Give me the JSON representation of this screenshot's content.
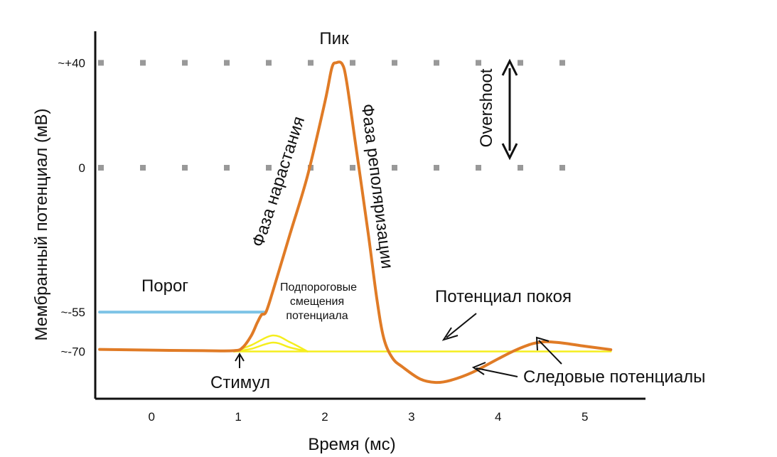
{
  "chart_data": {
    "type": "line",
    "xlabel": "Время (мс)",
    "ylabel": "Мембранный потенциал (мВ)",
    "x_ticks": [
      "0",
      "1",
      "2",
      "3",
      "4",
      "5"
    ],
    "y_ticks": [
      {
        "value": 40,
        "label": "~+40"
      },
      {
        "value": 0,
        "label": "0"
      },
      {
        "value": -55,
        "label": "~-55"
      },
      {
        "value": -70,
        "label": "~-70"
      }
    ],
    "xlim": [
      -0.65,
      5.7
    ],
    "ylim": [
      -88,
      52
    ],
    "gridlines": [
      40,
      0
    ],
    "grid_style": "dotted",
    "series": [
      {
        "role": "action-potential",
        "color": "#e07b26",
        "points": [
          [
            -0.6,
            -69.2
          ],
          [
            0.0,
            -69.5
          ],
          [
            0.6,
            -69.7
          ],
          [
            0.95,
            -69.7
          ],
          [
            1.05,
            -68.5
          ],
          [
            1.15,
            -64
          ],
          [
            1.22,
            -59
          ],
          [
            1.27,
            -56
          ],
          [
            1.32,
            -55
          ],
          [
            1.4,
            -47
          ],
          [
            1.6,
            -25
          ],
          [
            1.8,
            -3
          ],
          [
            2.0,
            25
          ],
          [
            2.08,
            38
          ],
          [
            2.13,
            40
          ],
          [
            2.2,
            39.5
          ],
          [
            2.25,
            33
          ],
          [
            2.35,
            10
          ],
          [
            2.5,
            -25
          ],
          [
            2.6,
            -50
          ],
          [
            2.68,
            -65
          ],
          [
            2.78,
            -72.5
          ],
          [
            2.9,
            -76
          ],
          [
            3.1,
            -80.5
          ],
          [
            3.28,
            -81.8
          ],
          [
            3.45,
            -81
          ],
          [
            3.7,
            -78
          ],
          [
            4.0,
            -72.8
          ],
          [
            4.2,
            -69.5
          ],
          [
            4.4,
            -67
          ],
          [
            4.55,
            -66.3
          ],
          [
            4.75,
            -66.8
          ],
          [
            5.0,
            -68
          ],
          [
            5.3,
            -69.3
          ]
        ]
      },
      {
        "role": "threshold",
        "color": "#7ec4e6",
        "points": [
          [
            -0.6,
            -55
          ],
          [
            1.3,
            -55
          ]
        ]
      },
      {
        "role": "resting-potential",
        "color": "#f5ee1e",
        "points": [
          [
            0.95,
            -70
          ],
          [
            5.3,
            -70
          ]
        ]
      },
      {
        "role": "subthreshold",
        "color": "#f5ee1e",
        "points": [
          [
            0.95,
            -70
          ],
          [
            1.15,
            -69
          ],
          [
            1.4,
            -66.6
          ],
          [
            1.6,
            -68.5
          ],
          [
            1.8,
            -70
          ]
        ]
      },
      {
        "role": "subthreshold",
        "color": "#f5ee1e",
        "points": [
          [
            0.95,
            -70
          ],
          [
            1.15,
            -67.6
          ],
          [
            1.4,
            -63.9
          ],
          [
            1.6,
            -66.5
          ],
          [
            1.8,
            -70
          ]
        ]
      }
    ],
    "annotations": {
      "peak": "Пик",
      "threshold": "Порог",
      "rising_phase": "Фаза нарастания",
      "repolarization_phase": "Фаза реполяризации",
      "overshoot": "Overshoot",
      "subthreshold_line1": "Подпороговые",
      "subthreshold_line2": "смещения",
      "subthreshold_line3": "потенциала",
      "resting_potential": "Потенциал покоя",
      "afterpotentials": "Следовые потенциалы",
      "stimulus": "Стимул"
    },
    "colors": {
      "axis": "#111111",
      "grid": "#999999",
      "text": "#111111"
    }
  }
}
